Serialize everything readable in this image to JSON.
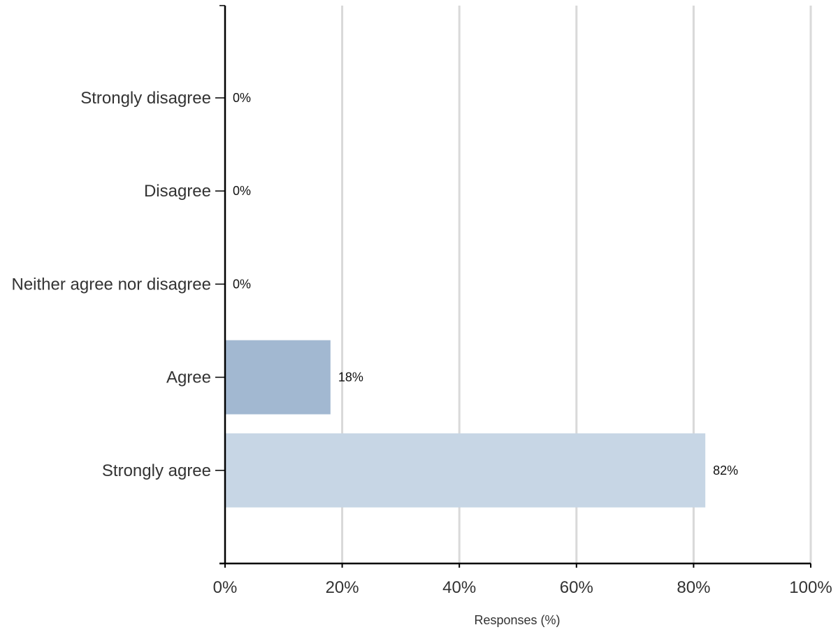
{
  "chart_data": {
    "type": "bar",
    "orientation": "horizontal",
    "categories": [
      "Strongly disagree",
      "Disagree",
      "Neither agree nor disagree",
      "Agree",
      "Strongly agree"
    ],
    "values": [
      0,
      0,
      0,
      18,
      82
    ],
    "data_labels": [
      "0%",
      "0%",
      "0%",
      "18%",
      "82%"
    ],
    "bar_colors": [
      "#a2b8d1",
      "#a2b8d1",
      "#a2b8d1",
      "#a2b8d1",
      "#c7d6e5"
    ],
    "xlabel": "Responses (%)",
    "ylabel": "",
    "title": "",
    "xlim": [
      0,
      100
    ],
    "x_ticks": [
      0,
      20,
      40,
      60,
      80,
      100
    ],
    "x_tick_labels": [
      "0%",
      "20%",
      "40%",
      "60%",
      "80%",
      "100%"
    ],
    "grid": "vertical",
    "legend": "none"
  },
  "colors": {
    "gridline": "#d9d9d9",
    "axis": "#000000"
  }
}
